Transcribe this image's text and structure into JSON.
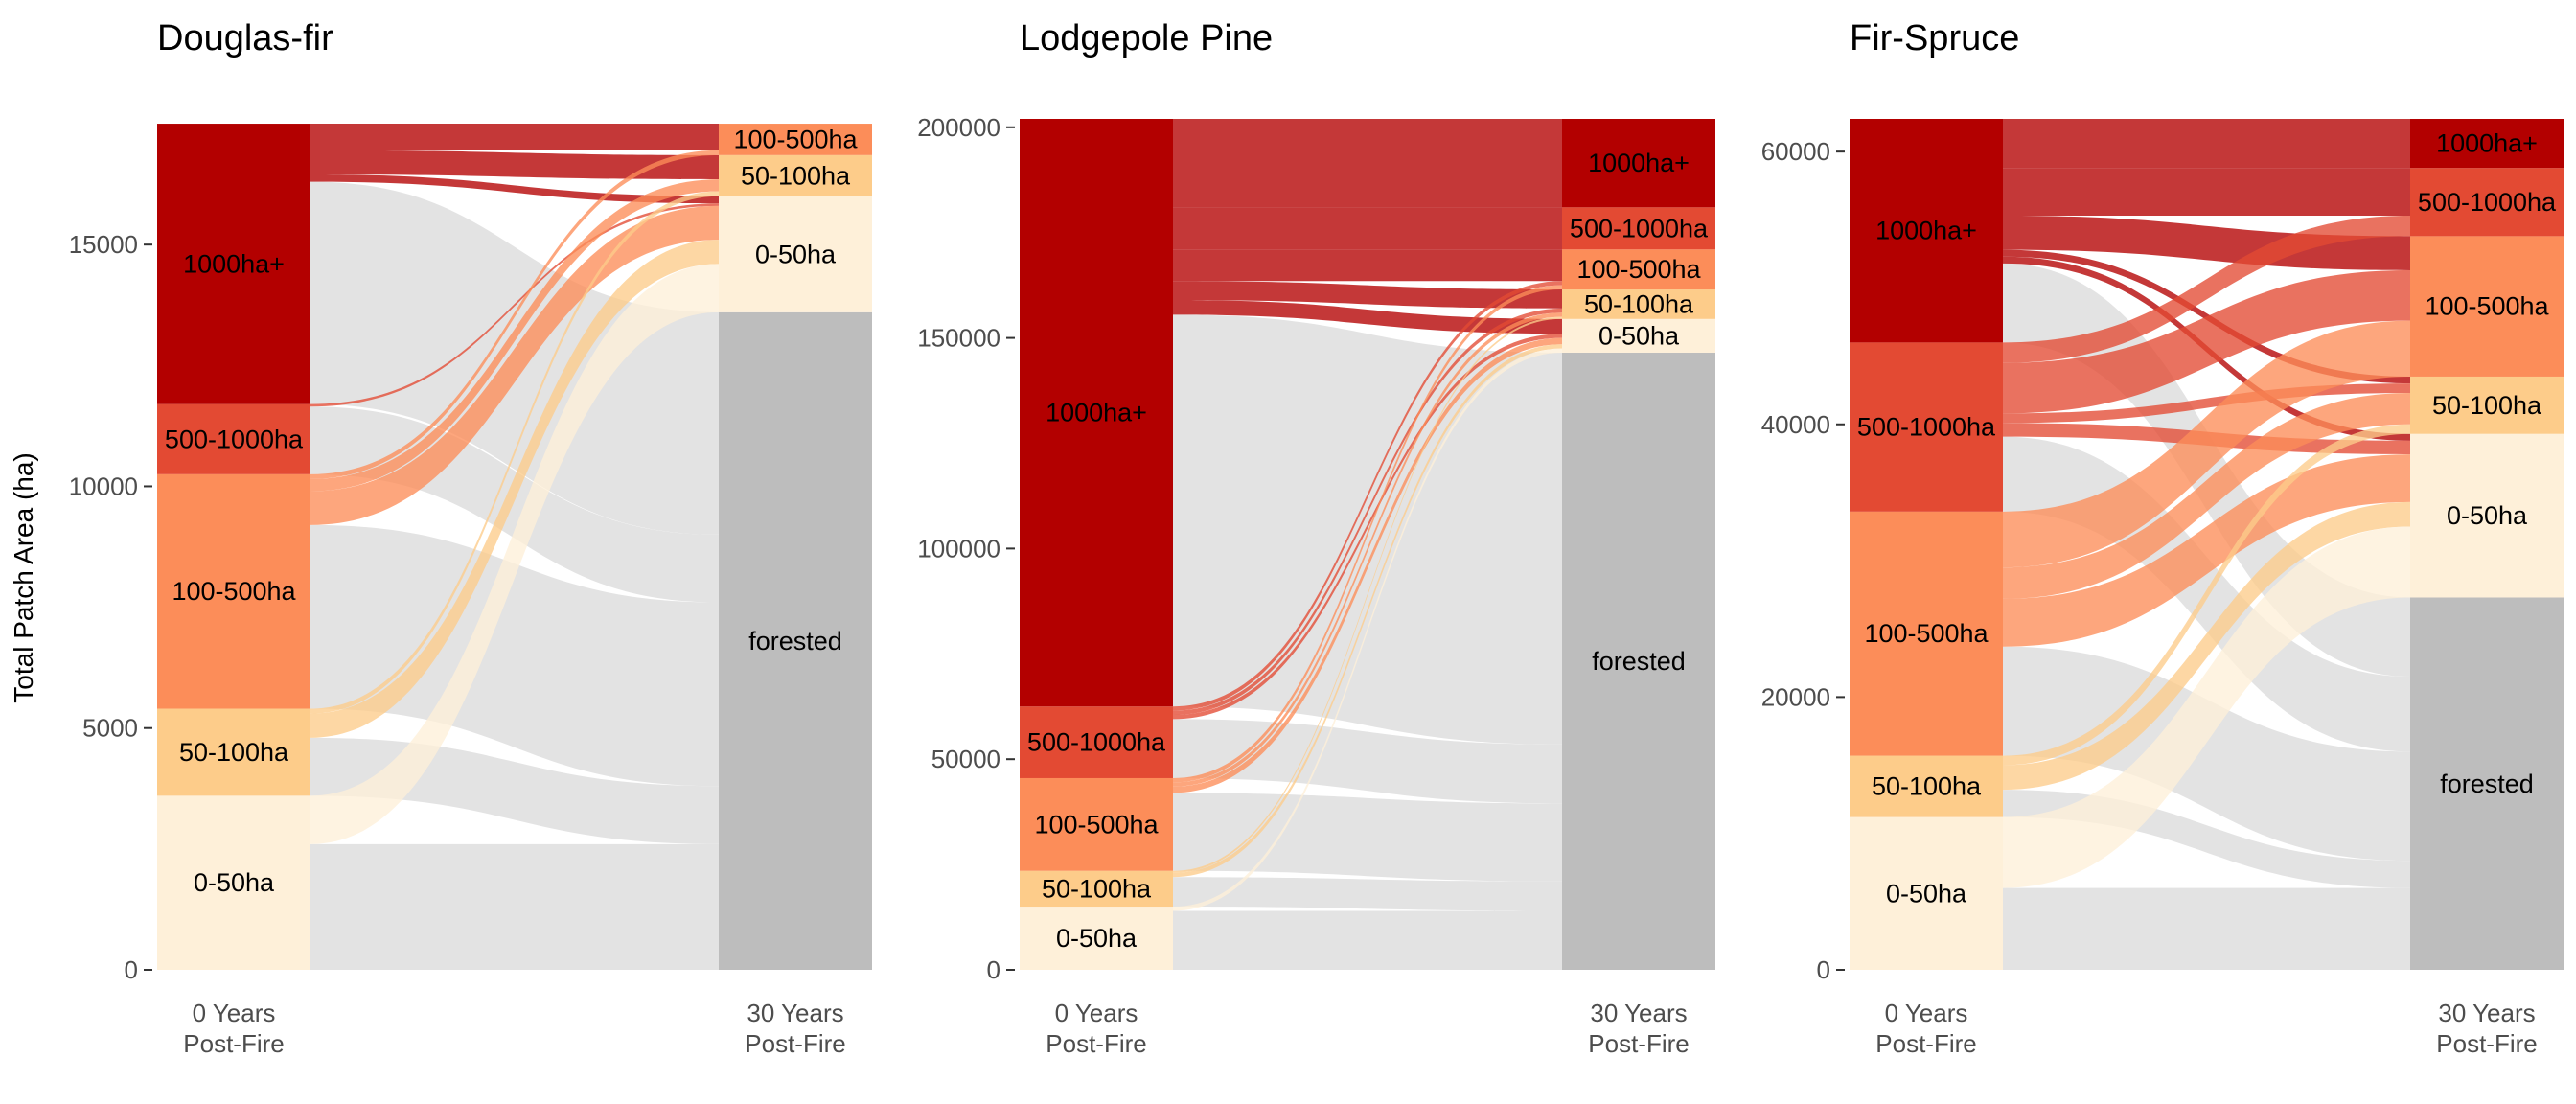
{
  "chart_data": {
    "type": "alluvial",
    "ylabel": "Total Patch Area (ha)",
    "x_categories": [
      "0 Years\nPost-Fire",
      "30 Years\nPost-Fire"
    ],
    "colors": {
      "1000ha+": "#b30000",
      "500-1000ha": "#e34a33",
      "100-500ha": "#fc8d59",
      "50-100ha": "#fdcc8a",
      "0-50ha": "#fef0d9",
      "forested": "#bdbdbd",
      "flow_to_forested": "#e3e3e3"
    },
    "panels": [
      {
        "title": "Douglas-fir",
        "ylim": [
          0,
          17600
        ],
        "yticks": [
          0,
          5000,
          10000,
          15000
        ],
        "left_nodes": [
          {
            "label": "0-50ha",
            "value": 3600
          },
          {
            "label": "50-100ha",
            "value": 1800
          },
          {
            "label": "100-500ha",
            "value": 4850
          },
          {
            "label": "500-1000ha",
            "value": 1450
          },
          {
            "label": "1000ha+",
            "value": 5800
          }
        ],
        "right_nodes": [
          {
            "label": "forested",
            "value": 13600
          },
          {
            "label": "0-50ha",
            "value": 2400
          },
          {
            "label": "50-100ha",
            "value": 850
          },
          {
            "label": "100-500ha",
            "value": 650
          },
          {
            "label": "500-1000ha",
            "value": 0
          },
          {
            "label": "1000ha+",
            "value": 0
          }
        ],
        "flows": [
          {
            "from": "0-50ha",
            "to": "forested",
            "value": 2600
          },
          {
            "from": "0-50ha",
            "to": "0-50ha",
            "value": 1000
          },
          {
            "from": "50-100ha",
            "to": "forested",
            "value": 1200
          },
          {
            "from": "50-100ha",
            "to": "0-50ha",
            "value": 500
          },
          {
            "from": "50-100ha",
            "to": "50-100ha",
            "value": 100
          },
          {
            "from": "100-500ha",
            "to": "forested",
            "value": 3800
          },
          {
            "from": "100-500ha",
            "to": "0-50ha",
            "value": 700
          },
          {
            "from": "100-500ha",
            "to": "50-100ha",
            "value": 250
          },
          {
            "from": "100-500ha",
            "to": "100-500ha",
            "value": 100
          },
          {
            "from": "500-1000ha",
            "to": "forested",
            "value": 1400
          },
          {
            "from": "500-1000ha",
            "to": "0-50ha",
            "value": 50
          },
          {
            "from": "1000ha+",
            "to": "forested",
            "value": 4600
          },
          {
            "from": "1000ha+",
            "to": "0-50ha",
            "value": 150
          },
          {
            "from": "1000ha+",
            "to": "50-100ha",
            "value": 500
          },
          {
            "from": "1000ha+",
            "to": "100-500ha",
            "value": 550
          }
        ]
      },
      {
        "title": "Lodgepole Pine",
        "ylim": [
          0,
          202000
        ],
        "yticks": [
          0,
          50000,
          100000,
          150000,
          200000
        ],
        "left_nodes": [
          {
            "label": "0-50ha",
            "value": 15000
          },
          {
            "label": "50-100ha",
            "value": 8500
          },
          {
            "label": "100-500ha",
            "value": 22000
          },
          {
            "label": "500-1000ha",
            "value": 17000
          },
          {
            "label": "1000ha+",
            "value": 139500
          }
        ],
        "right_nodes": [
          {
            "label": "forested",
            "value": 146500
          },
          {
            "label": "0-50ha",
            "value": 8000
          },
          {
            "label": "50-100ha",
            "value": 7000
          },
          {
            "label": "100-500ha",
            "value": 9500
          },
          {
            "label": "500-1000ha",
            "value": 10000
          },
          {
            "label": "1000ha+",
            "value": 21000
          }
        ],
        "flows": [
          {
            "from": "0-50ha",
            "to": "forested",
            "value": 14000
          },
          {
            "from": "0-50ha",
            "to": "0-50ha",
            "value": 1000
          },
          {
            "from": "50-100ha",
            "to": "forested",
            "value": 7000
          },
          {
            "from": "50-100ha",
            "to": "0-50ha",
            "value": 1000
          },
          {
            "from": "50-100ha",
            "to": "50-100ha",
            "value": 500
          },
          {
            "from": "100-500ha",
            "to": "forested",
            "value": 18500
          },
          {
            "from": "100-500ha",
            "to": "0-50ha",
            "value": 1500
          },
          {
            "from": "100-500ha",
            "to": "50-100ha",
            "value": 1000
          },
          {
            "from": "100-500ha",
            "to": "100-500ha",
            "value": 1000
          },
          {
            "from": "500-1000ha",
            "to": "forested",
            "value": 14000
          },
          {
            "from": "500-1000ha",
            "to": "0-50ha",
            "value": 1000
          },
          {
            "from": "500-1000ha",
            "to": "50-100ha",
            "value": 1000
          },
          {
            "from": "500-1000ha",
            "to": "100-500ha",
            "value": 1000
          },
          {
            "from": "1000ha+",
            "to": "forested",
            "value": 93000
          },
          {
            "from": "1000ha+",
            "to": "0-50ha",
            "value": 3500
          },
          {
            "from": "1000ha+",
            "to": "50-100ha",
            "value": 4500
          },
          {
            "from": "1000ha+",
            "to": "100-500ha",
            "value": 7500
          },
          {
            "from": "1000ha+",
            "to": "500-1000ha",
            "value": 10000
          },
          {
            "from": "1000ha+",
            "to": "1000ha+",
            "value": 21000
          }
        ]
      },
      {
        "title": "Fir-Spruce",
        "ylim": [
          0,
          62400
        ],
        "yticks": [
          0,
          20000,
          40000,
          60000
        ],
        "left_nodes": [
          {
            "label": "0-50ha",
            "value": 11200
          },
          {
            "label": "50-100ha",
            "value": 4500
          },
          {
            "label": "100-500ha",
            "value": 17900
          },
          {
            "label": "500-1000ha",
            "value": 12400
          },
          {
            "label": "1000ha+",
            "value": 16400
          }
        ],
        "right_nodes": [
          {
            "label": "forested",
            "value": 27300
          },
          {
            "label": "0-50ha",
            "value": 12000
          },
          {
            "label": "50-100ha",
            "value": 4200
          },
          {
            "label": "100-500ha",
            "value": 10300
          },
          {
            "label": "500-1000ha",
            "value": 5000
          },
          {
            "label": "1000ha+",
            "value": 3600
          }
        ],
        "flows": [
          {
            "from": "0-50ha",
            "to": "forested",
            "value": 6000
          },
          {
            "from": "0-50ha",
            "to": "0-50ha",
            "value": 5200
          },
          {
            "from": "50-100ha",
            "to": "forested",
            "value": 2000
          },
          {
            "from": "50-100ha",
            "to": "0-50ha",
            "value": 1800
          },
          {
            "from": "50-100ha",
            "to": "50-100ha",
            "value": 700
          },
          {
            "from": "100-500ha",
            "to": "forested",
            "value": 8000
          },
          {
            "from": "100-500ha",
            "to": "0-50ha",
            "value": 3500
          },
          {
            "from": "100-500ha",
            "to": "50-100ha",
            "value": 2300
          },
          {
            "from": "100-500ha",
            "to": "100-500ha",
            "value": 4100
          },
          {
            "from": "500-1000ha",
            "to": "forested",
            "value": 5500
          },
          {
            "from": "500-1000ha",
            "to": "0-50ha",
            "value": 1000
          },
          {
            "from": "500-1000ha",
            "to": "50-100ha",
            "value": 700
          },
          {
            "from": "500-1000ha",
            "to": "100-500ha",
            "value": 3700
          },
          {
            "from": "500-1000ha",
            "to": "500-1000ha",
            "value": 1500
          },
          {
            "from": "1000ha+",
            "to": "forested",
            "value": 5800
          },
          {
            "from": "1000ha+",
            "to": "0-50ha",
            "value": 500
          },
          {
            "from": "1000ha+",
            "to": "50-100ha",
            "value": 500
          },
          {
            "from": "1000ha+",
            "to": "100-500ha",
            "value": 2500
          },
          {
            "from": "1000ha+",
            "to": "500-1000ha",
            "value": 3500
          },
          {
            "from": "1000ha+",
            "to": "1000ha+",
            "value": 3600
          }
        ]
      }
    ]
  }
}
